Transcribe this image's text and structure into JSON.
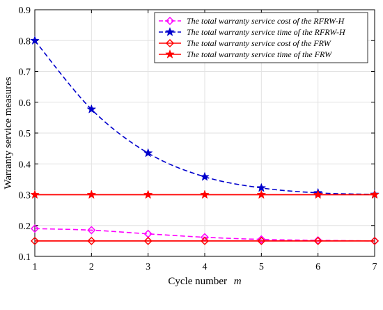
{
  "chart_data": {
    "type": "line",
    "xlabel": "Cycle number",
    "xlabel_var": "m",
    "ylabel": "Warranty service measures",
    "xlim": [
      1,
      7
    ],
    "ylim": [
      0.1,
      0.9
    ],
    "xticks": [
      1,
      2,
      3,
      4,
      5,
      6,
      7
    ],
    "yticks": [
      0.1,
      0.2,
      0.3,
      0.4,
      0.5,
      0.6,
      0.7,
      0.8,
      0.9
    ],
    "grid": true,
    "legend_position": "top-right",
    "x": [
      1,
      2,
      3,
      4,
      5,
      6,
      7
    ],
    "series": [
      {
        "name": "The total warranty service cost of the RFRW-H",
        "values": [
          0.19,
          0.185,
          0.173,
          0.162,
          0.155,
          0.152,
          0.15
        ],
        "color": "#ff00ff",
        "dash": "dashed",
        "marker": "diamond"
      },
      {
        "name": "The total warranty service time of the RFRW-H",
        "values": [
          0.8,
          0.577,
          0.435,
          0.358,
          0.322,
          0.306,
          0.301
        ],
        "color": "#0000cc",
        "dash": "dashed",
        "marker": "star"
      },
      {
        "name": "The total warranty service cost of the FRW",
        "values": [
          0.15,
          0.15,
          0.15,
          0.15,
          0.15,
          0.15,
          0.15
        ],
        "color": "#ff0000",
        "dash": "solid",
        "marker": "diamond"
      },
      {
        "name": "The total warranty service time of the FRW",
        "values": [
          0.3,
          0.3,
          0.3,
          0.3,
          0.3,
          0.3,
          0.3
        ],
        "color": "#ff0000",
        "dash": "solid",
        "marker": "star"
      }
    ]
  }
}
